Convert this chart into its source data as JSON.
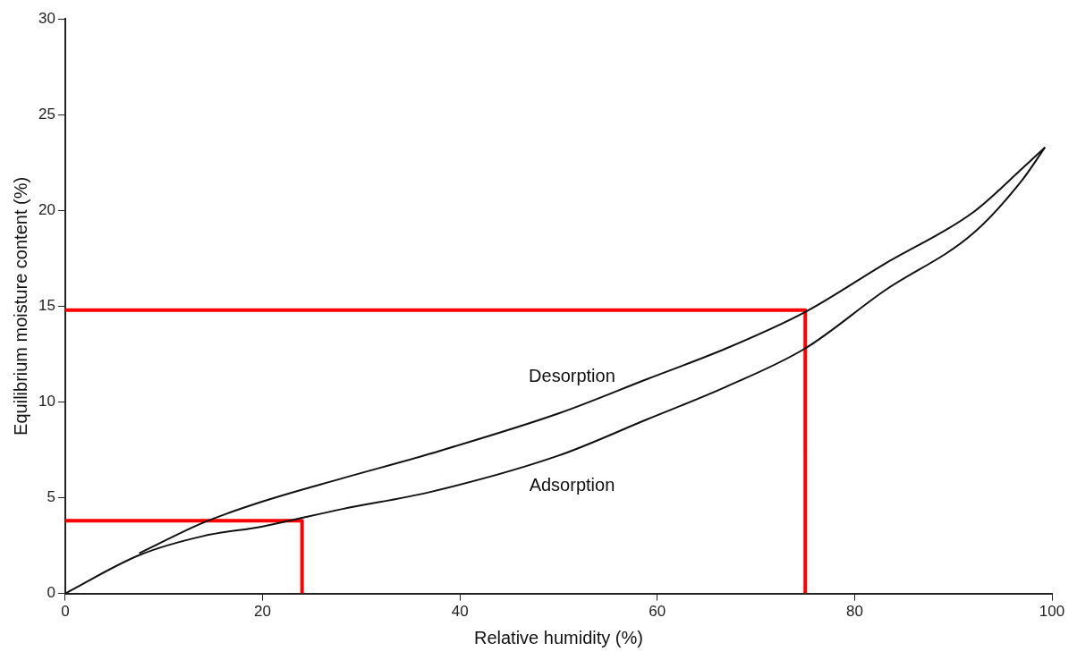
{
  "chart_data": {
    "type": "line",
    "xlabel": "Relative humidity (%)",
    "ylabel": "Equilibrium moisture content (%)",
    "xlim": [
      0,
      100
    ],
    "xticks": [
      0,
      20,
      40,
      60,
      80,
      100
    ],
    "ylim": [
      0,
      30
    ],
    "yticks": [
      0,
      5,
      10,
      15,
      20,
      25,
      30
    ],
    "grid": false,
    "legend": false,
    "marker": "none",
    "series": [
      {
        "name": "Desorption",
        "color": "#111111",
        "x": [
          7.5,
          14,
          20,
          28,
          37,
          50,
          59,
          67,
          75,
          83,
          92,
          97,
          99.3
        ],
        "values": [
          2.1,
          3.7,
          4.8,
          6.0,
          7.3,
          9.4,
          11.2,
          12.8,
          14.7,
          17.2,
          19.9,
          22.2,
          23.3
        ]
      },
      {
        "name": "Adsorption",
        "color": "#111111",
        "x": [
          0,
          7.5,
          14,
          20,
          28,
          37,
          50,
          59,
          67,
          75,
          83,
          92,
          97,
          99.3
        ],
        "values": [
          0,
          2.0,
          3.0,
          3.5,
          4.4,
          5.3,
          7.2,
          9.1,
          10.8,
          12.8,
          15.8,
          18.8,
          21.6,
          23.3
        ]
      },
      {
        "color": "#ff0000",
        "x": [
          0,
          24,
          24
        ],
        "values": [
          3.8,
          3.8,
          0
        ]
      },
      {
        "color": "#ff0000",
        "x": [
          0,
          75,
          75
        ],
        "values": [
          14.8,
          14.8,
          0
        ]
      }
    ]
  }
}
